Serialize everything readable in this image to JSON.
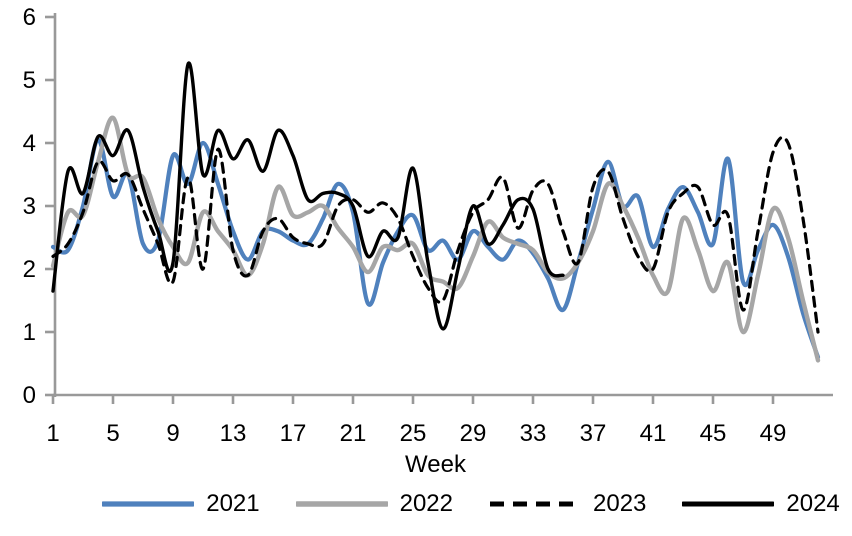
{
  "chart_data": {
    "type": "line",
    "title": "",
    "xlabel": "Week",
    "x_start": 1,
    "x_end": 52,
    "ylim": [
      0,
      6
    ],
    "y_ticks": [
      0,
      1,
      2,
      3,
      4,
      5,
      6
    ],
    "x_ticks": [
      1,
      5,
      9,
      13,
      17,
      21,
      25,
      29,
      33,
      37,
      41,
      45,
      49
    ],
    "grid": false,
    "legend_position": "bottom",
    "axis_color": "#999999",
    "text_color": "#000000",
    "series": [
      {
        "name": "2021",
        "color": "#4F81BD",
        "style": "solid",
        "stroke_width": 4.2,
        "values": [
          2.35,
          2.3,
          3.0,
          4.05,
          3.15,
          3.5,
          2.4,
          2.45,
          3.8,
          3.35,
          4.0,
          3.35,
          2.6,
          2.15,
          2.6,
          2.6,
          2.45,
          2.4,
          2.8,
          3.35,
          2.9,
          1.45,
          2.1,
          2.6,
          2.85,
          2.3,
          2.45,
          2.15,
          2.6,
          2.35,
          2.15,
          2.45,
          2.25,
          1.85,
          1.35,
          2.1,
          2.95,
          3.7,
          3.0,
          3.15,
          2.35,
          2.95,
          3.3,
          2.9,
          2.4,
          3.75,
          1.8,
          2.3,
          2.7,
          2.2,
          1.3,
          0.6
        ]
      },
      {
        "name": "2022",
        "color": "#A6A6A6",
        "style": "solid",
        "stroke_width": 4.4,
        "values": [
          2.05,
          2.9,
          2.85,
          3.7,
          4.4,
          3.5,
          3.45,
          2.8,
          2.35,
          2.1,
          2.9,
          2.6,
          2.3,
          1.9,
          2.4,
          3.3,
          2.85,
          2.9,
          3.0,
          2.65,
          2.35,
          1.95,
          2.35,
          2.3,
          2.4,
          1.9,
          1.8,
          1.7,
          2.2,
          2.75,
          2.5,
          2.4,
          2.3,
          1.95,
          1.85,
          2.1,
          2.6,
          3.35,
          3.0,
          2.5,
          1.9,
          1.65,
          2.8,
          2.3,
          1.65,
          2.1,
          1.0,
          1.9,
          2.95,
          2.5,
          1.5,
          0.55
        ]
      },
      {
        "name": "2023",
        "color": "#000000",
        "style": "dashed",
        "stroke_width": 3.2,
        "values": [
          2.2,
          2.4,
          2.9,
          3.7,
          3.4,
          3.5,
          2.95,
          2.4,
          1.8,
          3.45,
          2.0,
          3.9,
          2.3,
          1.9,
          2.6,
          2.8,
          2.5,
          2.4,
          2.4,
          3.0,
          3.1,
          2.9,
          3.05,
          2.8,
          2.2,
          1.7,
          1.5,
          2.3,
          2.9,
          3.1,
          3.45,
          2.65,
          3.25,
          3.35,
          2.6,
          2.1,
          3.3,
          3.55,
          2.8,
          2.2,
          2.0,
          2.9,
          3.2,
          3.3,
          2.7,
          2.85,
          1.35,
          2.6,
          3.85,
          4.0,
          2.8,
          1.0
        ]
      },
      {
        "name": "2024",
        "color": "#000000",
        "style": "solid",
        "stroke_width": 3.4,
        "values": [
          1.65,
          3.55,
          3.2,
          4.1,
          3.8,
          4.2,
          3.3,
          2.6,
          2.1,
          5.25,
          3.5,
          4.2,
          3.75,
          4.05,
          3.55,
          4.2,
          3.8,
          3.1,
          3.2,
          3.2,
          3.0,
          2.2,
          2.6,
          2.5,
          3.6,
          2.1,
          1.05,
          2.0,
          3.0,
          2.4,
          2.7,
          3.1,
          2.95,
          2.0,
          1.9,
          null,
          null,
          null,
          null,
          null,
          null,
          null,
          null,
          null,
          null,
          null,
          null,
          null,
          null,
          null,
          null,
          null
        ]
      }
    ]
  }
}
